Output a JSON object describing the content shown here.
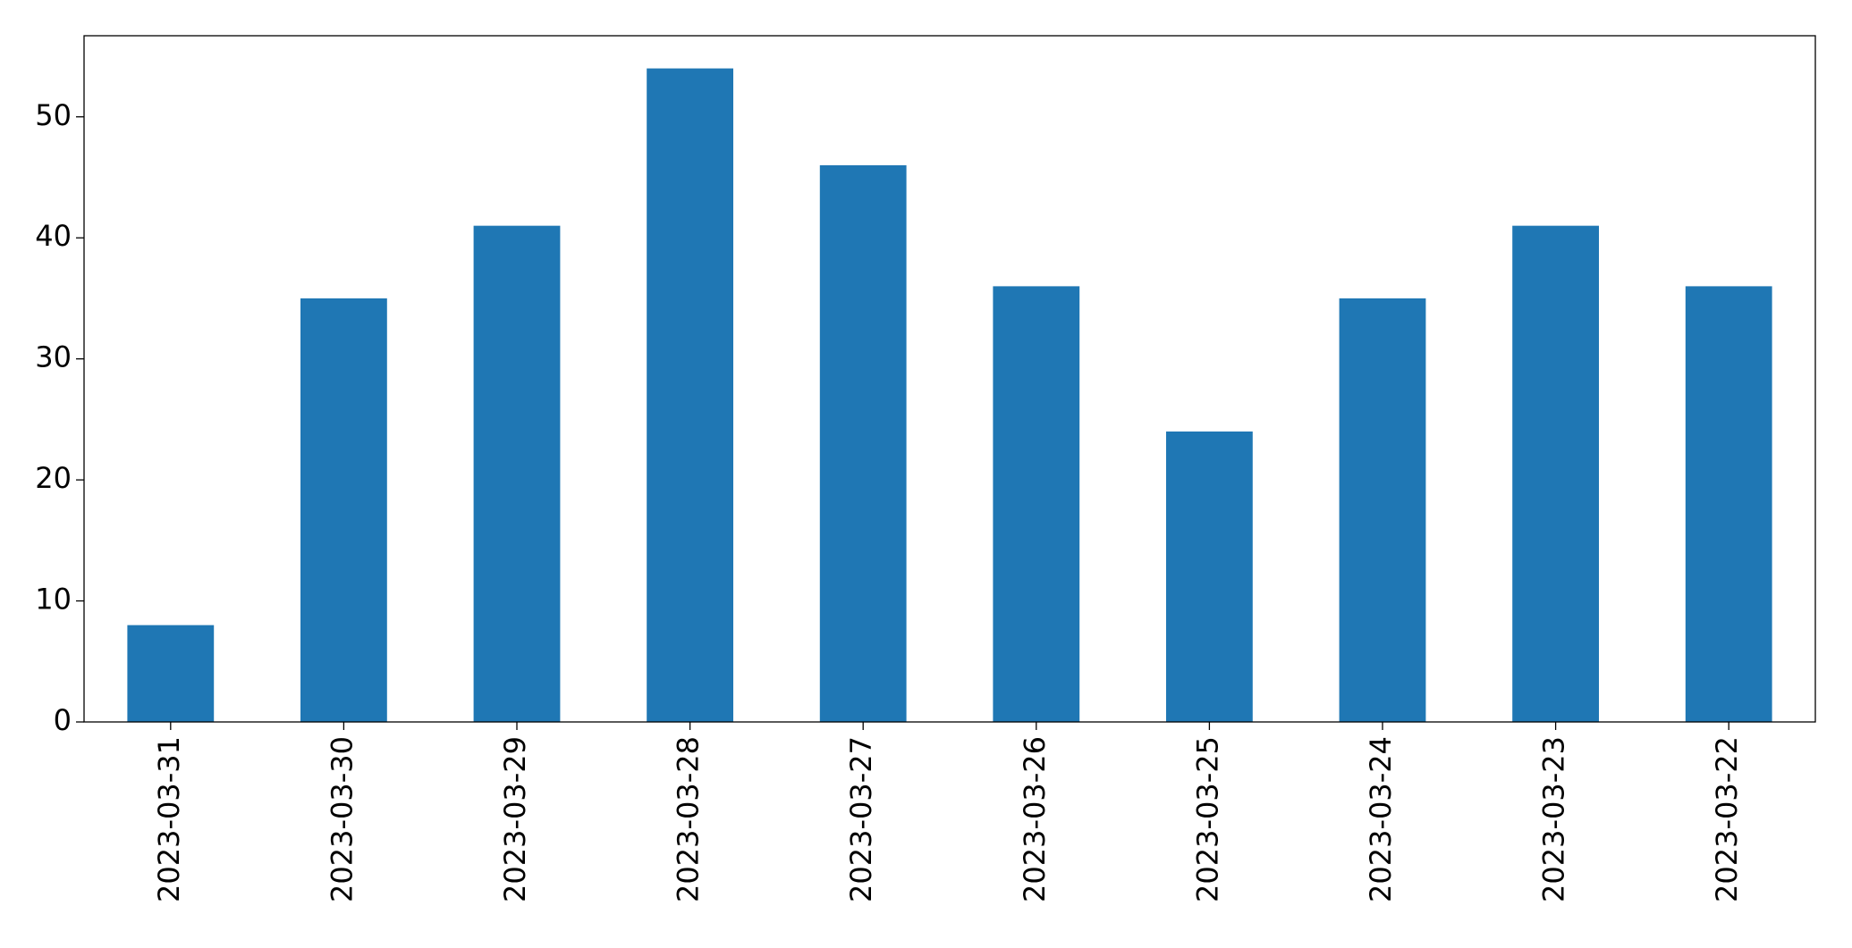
{
  "chart_data": {
    "type": "bar",
    "categories": [
      "2023-03-31",
      "2023-03-30",
      "2023-03-29",
      "2023-03-28",
      "2023-03-27",
      "2023-03-26",
      "2023-03-25",
      "2023-03-24",
      "2023-03-23",
      "2023-03-22"
    ],
    "values": [
      8,
      35,
      41,
      54,
      46,
      36,
      24,
      35,
      41,
      36
    ],
    "color": "#1f77b4",
    "ylim": [
      0,
      56.7
    ],
    "yticks": [
      0,
      10,
      20,
      30,
      40,
      50
    ],
    "grid": false
  }
}
